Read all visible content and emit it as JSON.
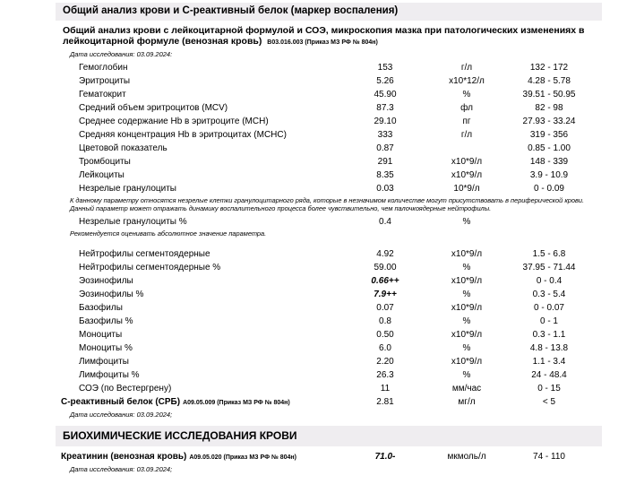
{
  "colors": {
    "header_bar_bg": "#efedf0",
    "text": "#000000",
    "page_bg": "#ffffff"
  },
  "report": {
    "title": "Общий анализ крови и С-реактивный белок (маркер воспаления)"
  },
  "cbc": {
    "test_name": "Общий анализ крови с лейкоцитарной формулой и СОЭ, микроскопия мазка при патологических изменениях в лейкоцитарной формуле (венозная кровь)",
    "test_code": "B03.016.003 (Приказ МЗ РФ № 804н)",
    "study_date": "Дата исследования: 03.09.2024:",
    "rows": [
      {
        "type": "param",
        "name": "Гемоглобин",
        "value": "153",
        "unit": "г/л",
        "range": "132 - 172"
      },
      {
        "type": "param",
        "name": "Эритроциты",
        "value": "5.26",
        "unit": "x10*12/л",
        "range": "4.28 - 5.78"
      },
      {
        "type": "param",
        "name": "Гематокрит",
        "value": "45.90",
        "unit": "%",
        "range": "39.51 - 50.95"
      },
      {
        "type": "param",
        "name": "Средний объем эритроцитов (MCV)",
        "value": "87.3",
        "unit": "фл",
        "range": "82 - 98"
      },
      {
        "type": "param",
        "name": "Среднее содержание Hb в эритроците (MCH)",
        "value": "29.10",
        "unit": "пг",
        "range": "27.93 - 33.24"
      },
      {
        "type": "param",
        "name": "Средняя концентрация Hb в эритроцитах (MCHC)",
        "value": "333",
        "unit": "г/л",
        "range": "319 - 356"
      },
      {
        "type": "param",
        "name": "Цветовой показатель",
        "value": "0.87",
        "unit": "",
        "range": "0.85 - 1.00"
      },
      {
        "type": "param",
        "name": "Тромбоциты",
        "value": "291",
        "unit": "x10*9/л",
        "range": "148 - 339"
      },
      {
        "type": "param",
        "name": "Лейкоциты",
        "value": "8.35",
        "unit": "x10*9/л",
        "range": "3.9 - 10.9"
      },
      {
        "type": "param",
        "name": "Незрелые гранулоциты",
        "value": "0.03",
        "unit": "10*9/л",
        "range": "0 - 0.09"
      },
      {
        "type": "note",
        "text": "К данному параметру относятся незрелые клетки гранулоцитарного ряда, которые  в незначимом количестве могут присутствовать в периферической крови. Данный параметр может отражать динамику воспалительного процесса более чувствительно, чем палочкоядерные нейтрофилы."
      },
      {
        "type": "param",
        "name": "Незрелые гранулоциты %",
        "value": "0.4",
        "unit": "%",
        "range": ""
      },
      {
        "type": "note",
        "text": "Рекомендуется оценивать абсолютное значение параметра."
      },
      {
        "type": "gap"
      },
      {
        "type": "param",
        "name": "Нейтрофилы сегментоядерные",
        "value": "4.92",
        "unit": "x10*9/л",
        "range": "1.5 - 6.8"
      },
      {
        "type": "param",
        "name": "Нейтрофилы сегментоядерные %",
        "value": "59.00",
        "unit": "%",
        "range": "37.95 - 71.44"
      },
      {
        "type": "param",
        "name": "Эозинофилы",
        "value": "0.66++",
        "unit": "x10*9/л",
        "range": "0 - 0.4",
        "abnormal": true
      },
      {
        "type": "param",
        "name": "Эозинофилы %",
        "value": "7.9++",
        "unit": "%",
        "range": "0.3 - 5.4",
        "abnormal": true
      },
      {
        "type": "param",
        "name": "Базофилы",
        "value": "0.07",
        "unit": "x10*9/л",
        "range": "0 - 0.07"
      },
      {
        "type": "param",
        "name": "Базофилы %",
        "value": "0.8",
        "unit": "%",
        "range": "0 - 1"
      },
      {
        "type": "param",
        "name": "Моноциты",
        "value": "0.50",
        "unit": "x10*9/л",
        "range": "0.3 - 1.1"
      },
      {
        "type": "param",
        "name": "Моноциты %",
        "value": "6.0",
        "unit": "%",
        "range": "4.8 - 13.8"
      },
      {
        "type": "param",
        "name": "Лимфоциты",
        "value": "2.20",
        "unit": "x10*9/л",
        "range": "1.1 - 3.4"
      },
      {
        "type": "param",
        "name": "Лимфоциты %",
        "value": "26.3",
        "unit": "%",
        "range": "24 - 48.4"
      },
      {
        "type": "param",
        "name": "СОЭ (по Вестергрену)",
        "value": "11",
        "unit": "мм/час",
        "range": "0 - 15"
      },
      {
        "type": "test",
        "name": "С-реактивный белок (СРБ)",
        "code": "A09.05.009 (Приказ МЗ РФ № 804н)",
        "value": "2.81",
        "unit": "мг/л",
        "range": "< 5"
      }
    ],
    "footer_date": "Дата исследования: 03.09.2024;"
  },
  "biochem": {
    "section_title": "БИОХИМИЧЕСКИЕ ИССЛЕДОВАНИЯ КРОВИ",
    "rows": [
      {
        "type": "test",
        "name": "Креатинин (венозная кровь)",
        "code": "A09.05.020 (Приказ МЗ РФ № 804н)",
        "value": "71.0-",
        "unit": "мкмоль/л",
        "range": "74 - 110",
        "abnormal": true
      }
    ],
    "footer_date": "Дата исследования: 03.09.2024;"
  }
}
